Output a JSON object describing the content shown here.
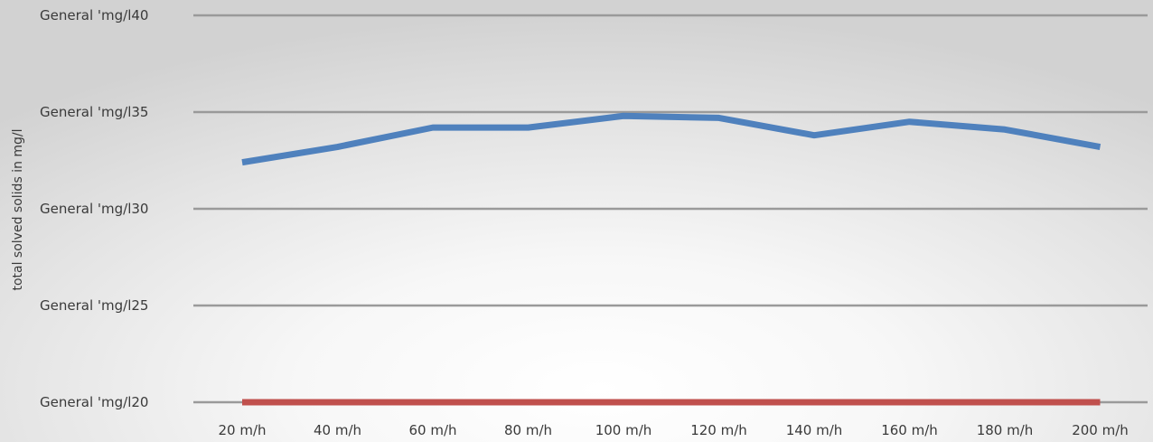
{
  "chart_data": {
    "type": "line",
    "title": "",
    "xlabel": "",
    "ylabel": "total solved solids in mg/l",
    "categories": [
      "20 m/h",
      "40 m/h",
      "60 m/h",
      "80 m/h",
      "100 m/h",
      "120 m/h",
      "140 m/h",
      "160 m/h",
      "180 m/h",
      "200 m/h"
    ],
    "y_ticks": [
      {
        "value": 40,
        "label": "General 'mg/l40"
      },
      {
        "value": 35,
        "label": "General 'mg/l35"
      },
      {
        "value": 30,
        "label": "General 'mg/l30"
      },
      {
        "value": 25,
        "label": "General 'mg/l25"
      },
      {
        "value": 20,
        "label": "General 'mg/l20"
      }
    ],
    "ylim": [
      20,
      40
    ],
    "grid": true,
    "legend": "none",
    "series": [
      {
        "color": "#4f81bd",
        "values": [
          32.4,
          33.2,
          34.2,
          34.2,
          34.8,
          34.7,
          33.8,
          34.5,
          34.1,
          33.2
        ]
      },
      {
        "color": "#c0504d",
        "values": [
          20,
          20,
          20,
          20,
          20,
          20,
          20,
          20,
          20,
          20
        ]
      }
    ]
  }
}
